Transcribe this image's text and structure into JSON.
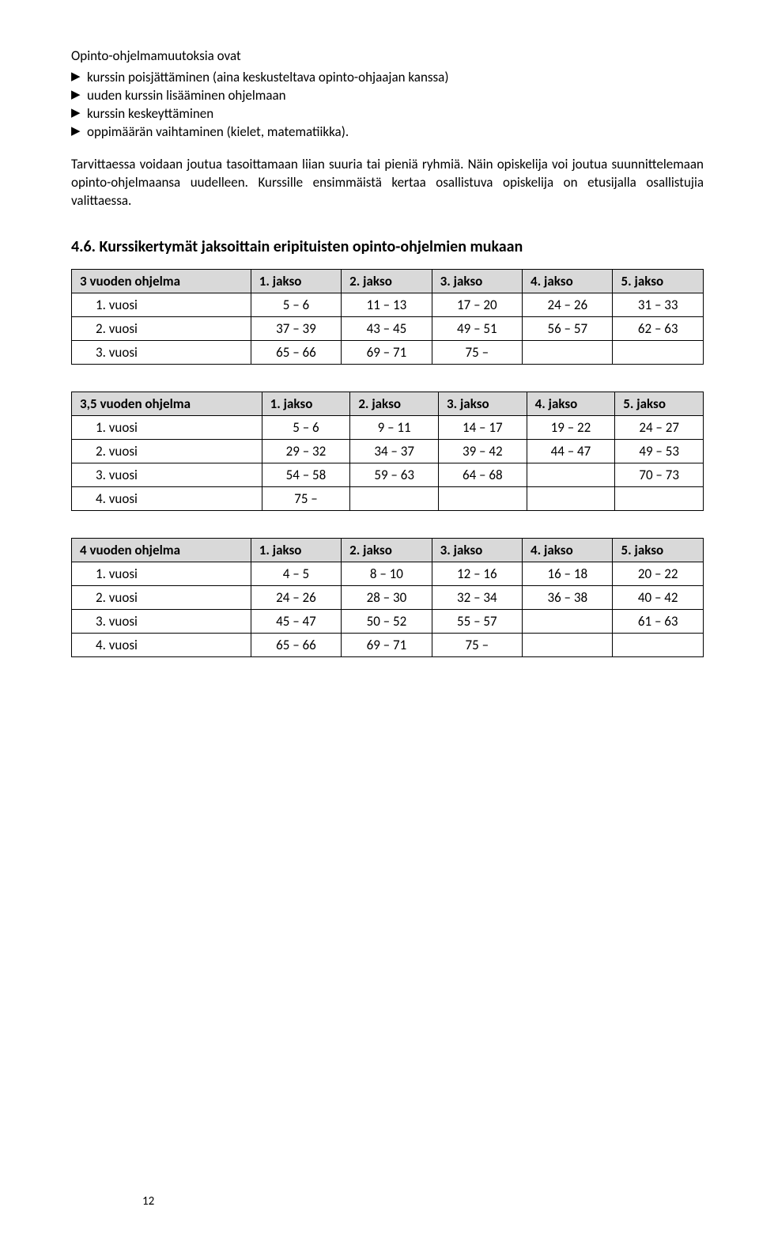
{
  "intro": {
    "lead": "Opinto-ohjelmamuutoksia ovat",
    "bullets": [
      "kurssin poisjättäminen (aina keskusteltava opinto-ohjaajan kanssa)",
      "uuden kurssin lisääminen ohjelmaan",
      "kurssin keskeyttäminen",
      "oppimäärän vaihtaminen (kielet, matematiikka)."
    ],
    "paragraph": "Tarvittaessa voidaan joutua tasoittamaan liian suuria tai pieniä ryhmiä. Näin opiskelija voi joutua suunnittelemaan opinto-ohjelmaansa uudelleen. Kurssille ensimmäistä kertaa osallistuva opiskelija on etusijalla osallistujia valittaessa."
  },
  "heading": "4.6. Kurssikertymät jaksoittain eripituisten opinto-ohjelmien mukaan",
  "table1": {
    "title": "3 vuoden ohjelma",
    "cols": [
      "1. jakso",
      "2. jakso",
      "3. jakso",
      "4. jakso",
      "5. jakso"
    ],
    "rows": [
      {
        "label": "1. vuosi",
        "cells": [
          "5 – 6",
          "11 – 13",
          "17 – 20",
          "24 – 26",
          "31 – 33"
        ]
      },
      {
        "label": "2. vuosi",
        "cells": [
          "37 – 39",
          "43 – 45",
          "49 – 51",
          "56 – 57",
          "62 – 63"
        ]
      },
      {
        "label": "3. vuosi",
        "cells": [
          "65 – 66",
          "69 – 71",
          "75 –",
          "",
          ""
        ]
      }
    ]
  },
  "table2": {
    "title": "3,5 vuoden ohjelma",
    "cols": [
      "1. jakso",
      "2. jakso",
      "3. jakso",
      "4. jakso",
      "5. jakso"
    ],
    "rows": [
      {
        "label": "1. vuosi",
        "cells": [
          "5 – 6",
          "9 – 11",
          "14 – 17",
          "19 – 22",
          "24 – 27"
        ]
      },
      {
        "label": "2. vuosi",
        "cells": [
          "29 – 32",
          "34 – 37",
          "39 – 42",
          "44 – 47",
          "49 – 53"
        ]
      },
      {
        "label": "3. vuosi",
        "cells": [
          "54 – 58",
          "59 – 63",
          "64 – 68",
          "",
          "70 – 73"
        ]
      },
      {
        "label": "4. vuosi",
        "cells": [
          "75 –",
          "",
          "",
          "",
          ""
        ]
      }
    ]
  },
  "table3": {
    "title": "4 vuoden ohjelma",
    "cols": [
      "1. jakso",
      "2. jakso",
      "3. jakso",
      "4. jakso",
      "5. jakso"
    ],
    "rows": [
      {
        "label": "1. vuosi",
        "cells": [
          "4 – 5",
          "8 – 10",
          "12 – 16",
          "16 – 18",
          "20 – 22"
        ]
      },
      {
        "label": "2. vuosi",
        "cells": [
          "24 – 26",
          "28 – 30",
          "32 – 34",
          "36 – 38",
          "40 – 42"
        ]
      },
      {
        "label": "3. vuosi",
        "cells": [
          "45 – 47",
          "50 – 52",
          "55 – 57",
          "",
          "61 – 63"
        ]
      },
      {
        "label": "4. vuosi",
        "cells": [
          "65 – 66",
          "69 – 71",
          "75 –",
          "",
          ""
        ]
      }
    ]
  },
  "pageNumber": "12",
  "colors": {
    "headerBg": "#d9d9d9",
    "border": "#000000",
    "text": "#000000",
    "background": "#ffffff"
  }
}
